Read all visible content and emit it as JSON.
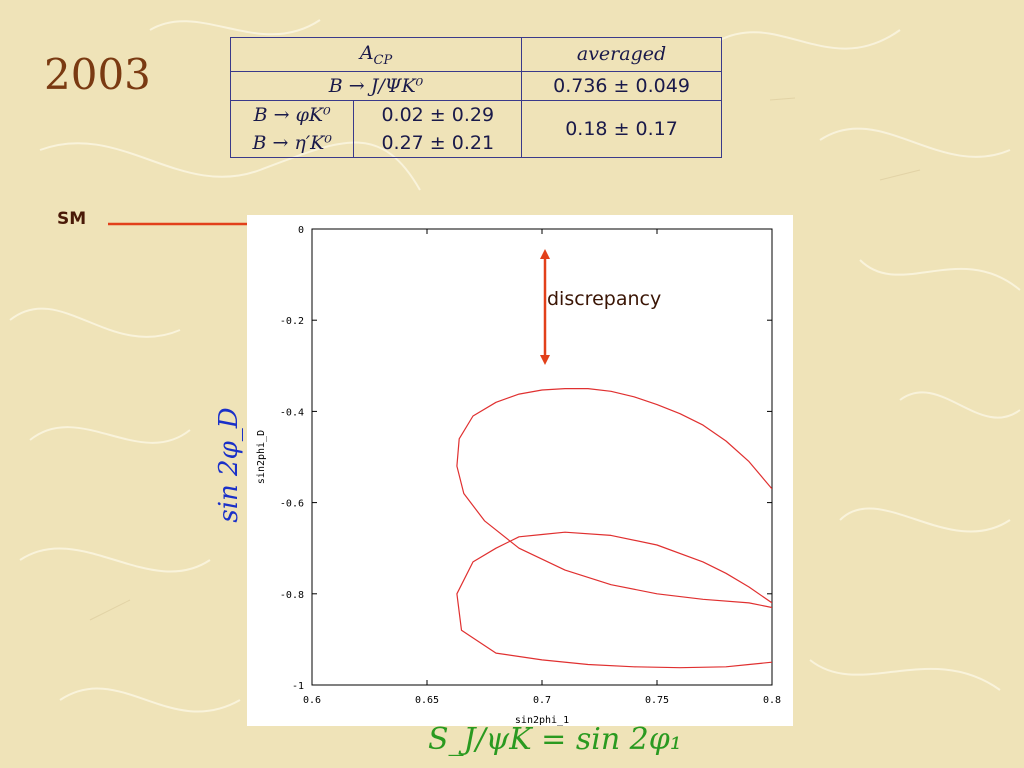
{
  "slide": {
    "year": "2003",
    "sm_label": "SM"
  },
  "table": {
    "header_left": "A_CP",
    "header_right": "averaged",
    "row1_left": "B → J/ΨK⁰",
    "row1_right": "0.736 ± 0.049",
    "row2_name": "B → φK⁰",
    "row2_value": "0.02 ± 0.29",
    "row3_name": "B → η′K⁰",
    "row3_value": "0.27 ± 0.21",
    "combined_value": "0.18 ± 0.17"
  },
  "annotations": {
    "discrepancy": "discrepancy",
    "y_big_label": "sin 2φ_D",
    "x_big_label": "S_J/ψK = sin 2φ₁"
  },
  "chart_data": {
    "type": "line",
    "xlabel": "sin2phi_1",
    "ylabel": "sin2phi_D",
    "xlim": [
      0.6,
      0.8
    ],
    "ylim": [
      -1,
      0
    ],
    "x_ticks": [
      "0.6",
      "0.65",
      "0.7",
      "0.75",
      "0.8"
    ],
    "y_ticks": [
      "0",
      "-0.2",
      "-0.4",
      "-0.6",
      "-0.8",
      "-1"
    ],
    "grid": false,
    "line_color": "#e03030",
    "series": [
      {
        "x": [
          0.8,
          0.79,
          0.78,
          0.77,
          0.76,
          0.75,
          0.74,
          0.73,
          0.72,
          0.71,
          0.7,
          0.69,
          0.68,
          0.67,
          0.664,
          0.663,
          0.666,
          0.675,
          0.69,
          0.71,
          0.73,
          0.75,
          0.77,
          0.79,
          0.8
        ],
        "y": [
          -0.57,
          -0.51,
          -0.465,
          -0.43,
          -0.405,
          -0.385,
          -0.368,
          -0.356,
          -0.35,
          -0.35,
          -0.353,
          -0.362,
          -0.38,
          -0.41,
          -0.46,
          -0.52,
          -0.58,
          -0.64,
          -0.7,
          -0.748,
          -0.78,
          -0.8,
          -0.812,
          -0.82,
          -0.83
        ]
      },
      {
        "x": [
          0.8,
          0.79,
          0.78,
          0.76,
          0.74,
          0.72,
          0.7,
          0.68,
          0.665,
          0.663,
          0.67,
          0.68,
          0.69,
          0.7,
          0.71,
          0.73,
          0.75,
          0.77,
          0.78,
          0.79,
          0.8
        ],
        "y": [
          -0.95,
          -0.955,
          -0.96,
          -0.962,
          -0.96,
          -0.955,
          -0.945,
          -0.93,
          -0.88,
          -0.8,
          -0.73,
          -0.7,
          -0.675,
          -0.67,
          -0.665,
          -0.672,
          -0.693,
          -0.73,
          -0.755,
          -0.785,
          -0.82
        ]
      }
    ]
  }
}
